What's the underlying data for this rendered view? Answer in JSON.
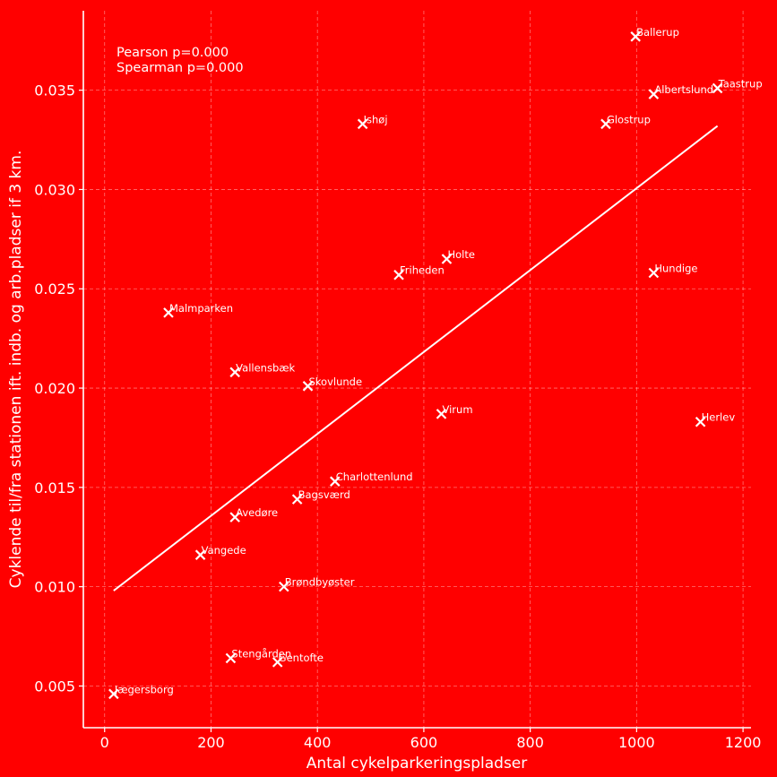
{
  "chart_data": {
    "type": "scatter",
    "xlabel": "Antal cykelparkeringspladser",
    "ylabel": "Cyklende til/fra stationen ift. indb. og arb.pladser if 3 km.",
    "xlim": [
      -40,
      1215
    ],
    "ylim": [
      0.0029,
      0.039
    ],
    "xticks": [
      0,
      200,
      400,
      600,
      800,
      1000,
      1200
    ],
    "xtick_labels": [
      "0",
      "200",
      "400",
      "600",
      "800",
      "1000",
      "1200"
    ],
    "yticks": [
      0.005,
      0.01,
      0.015,
      0.02,
      0.025,
      0.03,
      0.035
    ],
    "ytick_labels": [
      "0.005",
      "0.010",
      "0.015",
      "0.020",
      "0.025",
      "0.030",
      "0.035"
    ],
    "grid": true,
    "marker": "x",
    "annotations": [
      "Pearson p=0.000",
      "Spearman p=0.000"
    ],
    "points": [
      {
        "label": "Ballerup",
        "x": 998,
        "y": 0.0377
      },
      {
        "label": "Taastrup",
        "x": 1152,
        "y": 0.0351
      },
      {
        "label": "Albertslund",
        "x": 1032,
        "y": 0.0348
      },
      {
        "label": "Ishøj",
        "x": 485,
        "y": 0.0333
      },
      {
        "label": "Glostrup",
        "x": 942,
        "y": 0.0333
      },
      {
        "label": "Holte",
        "x": 643,
        "y": 0.0265
      },
      {
        "label": "Friheden",
        "x": 553,
        "y": 0.0257
      },
      {
        "label": "Hundige",
        "x": 1032,
        "y": 0.0258
      },
      {
        "label": "Malmparken",
        "x": 120,
        "y": 0.0238
      },
      {
        "label": "Vallensbæk",
        "x": 245,
        "y": 0.0208
      },
      {
        "label": "Skovlunde",
        "x": 382,
        "y": 0.0201
      },
      {
        "label": "Virum",
        "x": 633,
        "y": 0.0187
      },
      {
        "label": "Herlev",
        "x": 1120,
        "y": 0.0183
      },
      {
        "label": "Charlottenlund",
        "x": 433,
        "y": 0.0153
      },
      {
        "label": "Bagsværd",
        "x": 362,
        "y": 0.0144
      },
      {
        "label": "Avedøre",
        "x": 245,
        "y": 0.0135
      },
      {
        "label": "Vangede",
        "x": 180,
        "y": 0.0116
      },
      {
        "label": "Brøndbyøster",
        "x": 337,
        "y": 0.01
      },
      {
        "label": "Stengården",
        "x": 237,
        "y": 0.0064
      },
      {
        "label": "Gentofte",
        "x": 325,
        "y": 0.0062
      },
      {
        "label": "Jægersborg",
        "x": 17,
        "y": 0.0046
      }
    ],
    "fit_line": {
      "x": [
        17,
        1152
      ],
      "y": [
        0.0098,
        0.0332
      ]
    },
    "colors": {
      "background": "#ff0000",
      "foreground": "#ffffff"
    }
  }
}
